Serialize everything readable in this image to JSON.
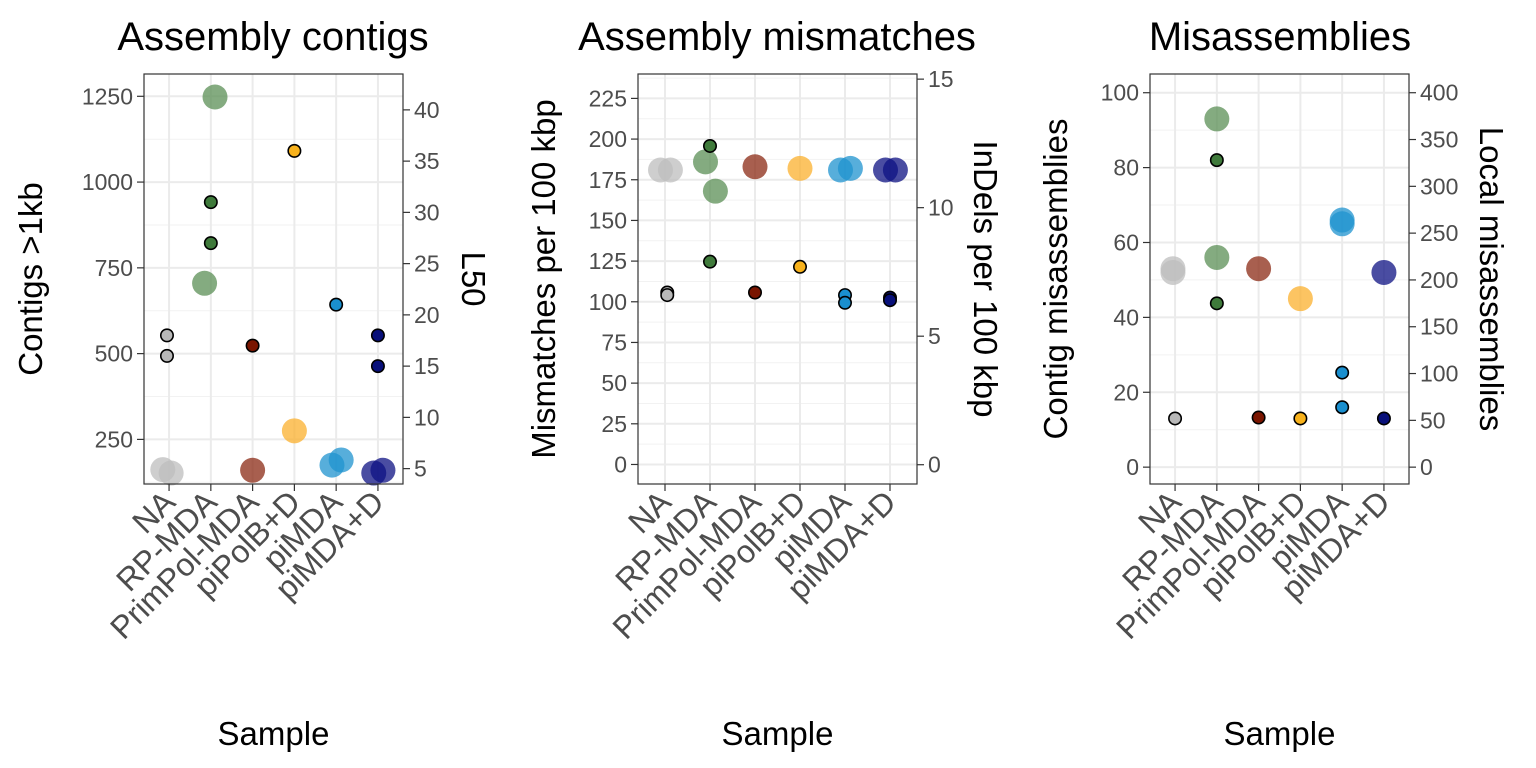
{
  "chart_data": [
    {
      "type": "scatter",
      "title": "Assembly contigs",
      "xlabel": "Sample",
      "ylabel": "Contigs >1kb",
      "ylabel_right": "L50",
      "categories": [
        "NA",
        "RP-MDA",
        "PrimPol-MDA",
        "piPolB+D",
        "piMDA",
        "piMDA+D"
      ],
      "ylim": [
        120,
        1315
      ],
      "yticks": [
        250,
        500,
        750,
        1000,
        1250
      ],
      "ylim_right": [
        3.5,
        43.5
      ],
      "yticks_right": [
        5,
        10,
        15,
        20,
        25,
        30,
        35,
        40
      ],
      "series": [
        {
          "axis": "left",
          "marker": "large",
          "points": [
            {
              "cat": 0,
              "x": -0.15,
              "y": 162
            },
            {
              "cat": 0,
              "x": 0.05,
              "y": 152
            },
            {
              "cat": 1,
              "x": -0.15,
              "y": 705
            },
            {
              "cat": 1,
              "x": 0.1,
              "y": 1248
            },
            {
              "cat": 2,
              "x": 0,
              "y": 160
            },
            {
              "cat": 3,
              "x": 0,
              "y": 275
            },
            {
              "cat": 4,
              "x": -0.1,
              "y": 175
            },
            {
              "cat": 4,
              "x": 0.12,
              "y": 190
            },
            {
              "cat": 5,
              "x": -0.1,
              "y": 152
            },
            {
              "cat": 5,
              "x": 0.12,
              "y": 160
            }
          ]
        },
        {
          "axis": "right",
          "marker": "small",
          "points": [
            {
              "cat": 0,
              "x": -0.05,
              "y": 18
            },
            {
              "cat": 0,
              "x": -0.05,
              "y": 16
            },
            {
              "cat": 1,
              "x": 0,
              "y": 31
            },
            {
              "cat": 1,
              "x": 0,
              "y": 27
            },
            {
              "cat": 2,
              "x": 0,
              "y": 17
            },
            {
              "cat": 3,
              "x": 0,
              "y": 36
            },
            {
              "cat": 4,
              "x": 0,
              "y": 21
            },
            {
              "cat": 5,
              "x": 0,
              "y": 18
            },
            {
              "cat": 5,
              "x": 0,
              "y": 15
            }
          ]
        }
      ]
    },
    {
      "type": "scatter",
      "title": "Assembly mismatches",
      "xlabel": "Sample",
      "ylabel": "Mismatches per 100 kbp",
      "ylabel_right": "InDels per 100 kbp",
      "categories": [
        "NA",
        "RP-MDA",
        "PrimPol-MDA",
        "piPolB+D",
        "piMDA",
        "piMDA+D"
      ],
      "ylim": [
        -12,
        240
      ],
      "yticks": [
        0,
        25,
        50,
        75,
        100,
        125,
        150,
        175,
        200,
        225
      ],
      "ylim_right": [
        -0.75,
        15.2
      ],
      "yticks_right": [
        0,
        5,
        10,
        15
      ],
      "series": [
        {
          "axis": "left",
          "marker": "large",
          "points": [
            {
              "cat": 0,
              "x": -0.1,
              "y": 181
            },
            {
              "cat": 0,
              "x": 0.12,
              "y": 181
            },
            {
              "cat": 1,
              "x": -0.1,
              "y": 186
            },
            {
              "cat": 1,
              "x": 0.12,
              "y": 168
            },
            {
              "cat": 2,
              "x": 0,
              "y": 183
            },
            {
              "cat": 3,
              "x": 0,
              "y": 182
            },
            {
              "cat": 4,
              "x": -0.1,
              "y": 181
            },
            {
              "cat": 4,
              "x": 0.12,
              "y": 182
            },
            {
              "cat": 5,
              "x": -0.1,
              "y": 181
            },
            {
              "cat": 5,
              "x": 0.12,
              "y": 181
            }
          ]
        },
        {
          "axis": "right",
          "marker": "small",
          "points": [
            {
              "cat": 0,
              "x": 0.05,
              "y": 6.7
            },
            {
              "cat": 0,
              "x": 0.05,
              "y": 6.6
            },
            {
              "cat": 1,
              "x": 0,
              "y": 12.4
            },
            {
              "cat": 1,
              "x": 0,
              "y": 7.9
            },
            {
              "cat": 2,
              "x": 0,
              "y": 6.7
            },
            {
              "cat": 3,
              "x": 0,
              "y": 7.7
            },
            {
              "cat": 4,
              "x": 0,
              "y": 6.6
            },
            {
              "cat": 4,
              "x": 0,
              "y": 6.3
            },
            {
              "cat": 5,
              "x": 0,
              "y": 6.5
            },
            {
              "cat": 5,
              "x": 0,
              "y": 6.4
            }
          ]
        }
      ]
    },
    {
      "type": "scatter",
      "title": "Misassemblies",
      "xlabel": "Sample",
      "ylabel": "Contig misassemblies",
      "ylabel_right": "Local misassemblies",
      "categories": [
        "NA",
        "RP-MDA",
        "PrimPol-MDA",
        "piPolB+D",
        "piMDA",
        "piMDA+D"
      ],
      "ylim": [
        -4.5,
        105
      ],
      "yticks": [
        0,
        20,
        40,
        60,
        80,
        100
      ],
      "ylim_right": [
        -18,
        420
      ],
      "yticks_right": [
        0,
        50,
        100,
        150,
        200,
        250,
        300,
        350,
        400
      ],
      "series": [
        {
          "axis": "left",
          "marker": "large",
          "points": [
            {
              "cat": 0,
              "x": -0.05,
              "y": 53
            },
            {
              "cat": 0,
              "x": -0.05,
              "y": 52
            },
            {
              "cat": 1,
              "x": 0,
              "y": 93
            },
            {
              "cat": 1,
              "x": 0,
              "y": 56
            },
            {
              "cat": 2,
              "x": 0,
              "y": 53
            },
            {
              "cat": 3,
              "x": 0,
              "y": 45
            },
            {
              "cat": 4,
              "x": 0,
              "y": 66
            },
            {
              "cat": 4,
              "x": 0,
              "y": 65
            },
            {
              "cat": 5,
              "x": 0,
              "y": 52
            }
          ]
        },
        {
          "axis": "right",
          "marker": "small",
          "points": [
            {
              "cat": 0,
              "x": 0,
              "y": 52
            },
            {
              "cat": 1,
              "x": 0,
              "y": 328
            },
            {
              "cat": 1,
              "x": 0,
              "y": 175
            },
            {
              "cat": 2,
              "x": 0,
              "y": 53
            },
            {
              "cat": 3,
              "x": 0,
              "y": 52
            },
            {
              "cat": 4,
              "x": 0,
              "y": 101
            },
            {
              "cat": 4,
              "x": 0,
              "y": 64
            },
            {
              "cat": 5,
              "x": 0,
              "y": 52
            }
          ]
        }
      ]
    }
  ],
  "colors": {
    "NA": "#bdbdbd",
    "RP-MDA": "#5b8f55",
    "PrimPol-MDA": "#8b2a14",
    "piPolB+D": "#fbb02d",
    "piMDA": "#1f93cf",
    "piMDA+D": "#0d1283"
  },
  "small_colors": {
    "NA": "#b8b8b8",
    "RP-MDA": "#3f7a3b",
    "PrimPol-MDA": "#7a1500",
    "piPolB+D": "#f8b21c",
    "piMDA": "#1a8fcf",
    "piMDA+D": "#08107a"
  },
  "grid": true,
  "legend": "none"
}
